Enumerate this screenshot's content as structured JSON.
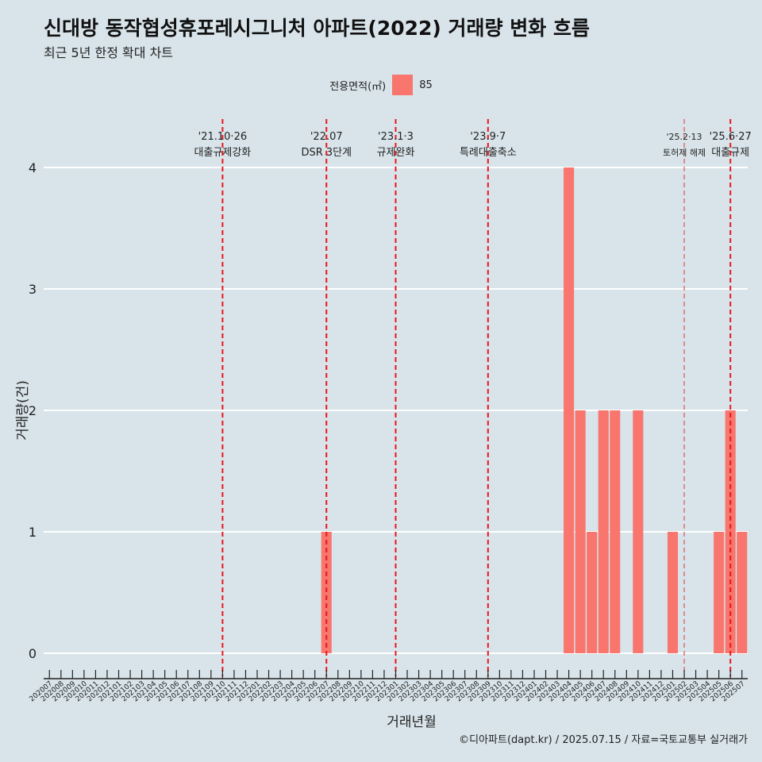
{
  "header": {
    "title": "신대방 동작협성휴포레시그니처 아파트(2022) 거래량 변화 흐름",
    "subtitle": "최근 5년 한정 확대 차트"
  },
  "legend": {
    "title": "전용면적(㎡)",
    "items": [
      {
        "label": "85",
        "color": "#f8766d"
      }
    ]
  },
  "caption": "©디아파트(dapt.kr) / 2025.07.15 / 자료=국토교통부 실거래가",
  "chart_data": {
    "type": "bar",
    "title": "신대방 동작협성휴포레시그니처 아파트(2022) 거래량 변화 흐름",
    "subtitle": "최근 5년 한정 확대 차트",
    "xlabel": "거래년월",
    "ylabel": "거래량(건)",
    "ylim": [
      0,
      4
    ],
    "yticks": [
      0,
      1,
      2,
      3,
      4
    ],
    "grid": true,
    "legend_position": "top",
    "categories": [
      "202007",
      "202008",
      "202009",
      "202010",
      "202011",
      "202012",
      "202101",
      "202102",
      "202103",
      "202104",
      "202105",
      "202106",
      "202107",
      "202108",
      "202109",
      "202110",
      "202111",
      "202112",
      "202201",
      "202202",
      "202203",
      "202204",
      "202205",
      "202206",
      "202207",
      "202208",
      "202209",
      "202210",
      "202211",
      "202212",
      "202301",
      "202302",
      "202303",
      "202304",
      "202305",
      "202306",
      "202307",
      "202308",
      "202309",
      "202310",
      "202311",
      "202312",
      "202401",
      "202402",
      "202403",
      "202404",
      "202405",
      "202406",
      "202407",
      "202408",
      "202409",
      "202410",
      "202411",
      "202412",
      "202501",
      "202502",
      "202503",
      "202504",
      "202505",
      "202506",
      "202507"
    ],
    "series": [
      {
        "name": "85",
        "color": "#f8766d",
        "values": [
          0,
          0,
          0,
          0,
          0,
          0,
          0,
          0,
          0,
          0,
          0,
          0,
          0,
          0,
          0,
          0,
          0,
          0,
          0,
          0,
          0,
          0,
          0,
          0,
          1,
          0,
          0,
          0,
          0,
          0,
          0,
          0,
          0,
          0,
          0,
          0,
          0,
          0,
          0,
          0,
          0,
          0,
          0,
          0,
          0,
          4,
          2,
          1,
          2,
          2,
          0,
          2,
          0,
          0,
          1,
          0,
          0,
          0,
          1,
          2,
          1
        ]
      }
    ],
    "annotations": [
      {
        "x": "202110",
        "date": "'21.10·26",
        "label": "대출규제강화",
        "style": "dashed"
      },
      {
        "x": "202207",
        "date": "'22.07",
        "label": "DSR 3단계",
        "style": "dashed"
      },
      {
        "x": "202301",
        "date": "'23.1·3",
        "label": "규제완화",
        "style": "dashed"
      },
      {
        "x": "202309",
        "date": "'23.9·7",
        "label": "특례대출축소",
        "style": "dashed"
      },
      {
        "x": "202502",
        "date": "'25.2·13",
        "label": "토허제 해제",
        "style": "dashed-thin"
      },
      {
        "x": "202506",
        "date": "'25.6·27",
        "label": "대출규제",
        "style": "dashed"
      }
    ]
  }
}
